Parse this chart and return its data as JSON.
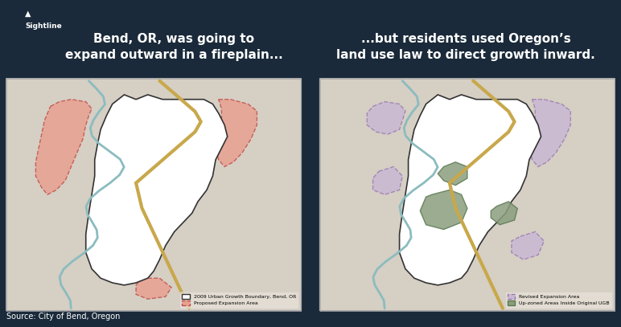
{
  "background_color": "#1a2a3a",
  "map_bg_color": "#d6cfc4",
  "panel_bg_color": "#d6cfc4",
  "title_left": "Bend, OR, was going to\nexpand outward in a fireplain...",
  "title_right": "...but residents used Oregon’s\nland use law to direct growth inward.",
  "source_text": "Source: City of Bend, Oregon",
  "title_color": "#ffffff",
  "source_color": "#ffffff",
  "title_fontsize": 11,
  "source_fontsize": 7,
  "legend_left": [
    {
      "label": "2009 Urban Growth Boundary, Bend, OR",
      "color": "#ffffff",
      "edgecolor": "#333333",
      "linestyle": "solid"
    },
    {
      "label": "Proposed Expansion Area",
      "color": "#e8a090",
      "edgecolor": "#c0504d",
      "linestyle": "dashed"
    }
  ],
  "legend_right": [
    {
      "label": "Revised Expansion Area",
      "color": "#c9b8d4",
      "edgecolor": "#9b7db0",
      "linestyle": "dashed"
    },
    {
      "label": "Up-zoned Areas Inside Original UGB",
      "color": "#8a9e7e",
      "edgecolor": "#5c7a52",
      "linestyle": "solid"
    }
  ],
  "river_color": "#8bbcbf",
  "road_color": "#c8a84b",
  "ugb_color": "#ffffff",
  "ugb_edge": "#333333",
  "expansion_fill": "#e8a090",
  "expansion_edge": "#c0504d",
  "revised_fill": "#c9b8d4",
  "revised_edge": "#9b7db0",
  "upzone_fill": "#8a9e7e",
  "upzone_edge": "#5c7a52",
  "logo_color": "#ffffff"
}
